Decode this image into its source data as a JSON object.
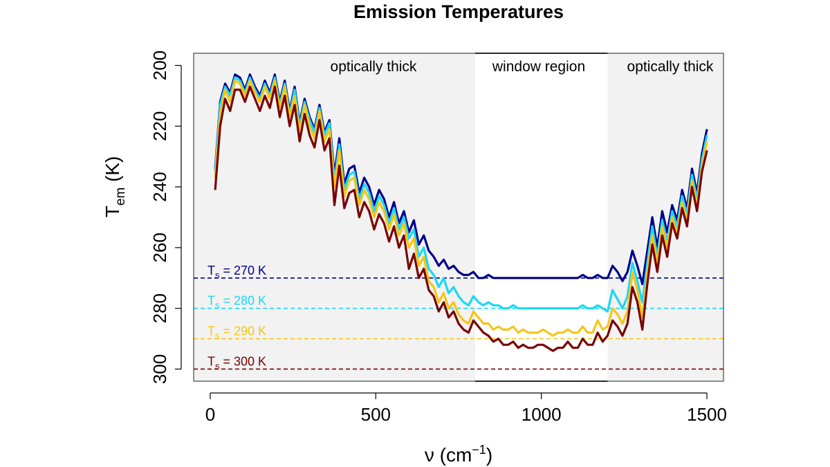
{
  "chart_data": {
    "type": "line",
    "title": "Emission Temperatures",
    "xlabel": {
      "base": "ν  (cm",
      "superscript": "−1",
      "suffix": ")"
    },
    "ylabel": {
      "base": "T",
      "subscript": "em",
      "suffix": "  (K)"
    },
    "xlim": [
      -50,
      1550
    ],
    "ylim": [
      304,
      196
    ],
    "y_reversed": true,
    "xticks": [
      "0",
      "500",
      "1000",
      "1500"
    ],
    "xtick_values": [
      0,
      500,
      1000,
      1500
    ],
    "yticks": [
      "200",
      "220",
      "240",
      "260",
      "280",
      "300"
    ],
    "ytick_values": [
      200,
      220,
      240,
      260,
      280,
      300
    ],
    "grid": false,
    "regions": [
      {
        "label": "optically thick",
        "x": [
          -50,
          800
        ],
        "shaded": true,
        "color": "#f2f2f2"
      },
      {
        "label": "window region",
        "x": [
          800,
          1200
        ],
        "shaded": false,
        "color": "#ffffff"
      },
      {
        "label": "optically thick",
        "x": [
          1200,
          1550
        ],
        "shaded": true,
        "color": "#f2f2f2"
      }
    ],
    "reference_lines": [
      {
        "y": 270,
        "color": "#00008b",
        "label_base": "T",
        "label_sub": "s",
        "label_rest": " = 270 K"
      },
      {
        "y": 280,
        "color": "#1ad8f5",
        "label_base": "T",
        "label_sub": "s",
        "label_rest": " = 280 K"
      },
      {
        "y": 290,
        "color": "#f5c518",
        "label_base": "T",
        "label_sub": "s",
        "label_rest": " = 290 K"
      },
      {
        "y": 300,
        "color": "#7a0000",
        "label_base": "T",
        "label_sub": "s",
        "label_rest": " = 300 K"
      }
    ],
    "x": [
      15,
      30,
      45,
      60,
      75,
      90,
      105,
      120,
      135,
      150,
      165,
      180,
      195,
      210,
      225,
      240,
      255,
      270,
      285,
      300,
      315,
      330,
      345,
      360,
      375,
      390,
      405,
      420,
      435,
      450,
      465,
      480,
      495,
      510,
      525,
      540,
      555,
      570,
      585,
      600,
      615,
      630,
      645,
      660,
      675,
      690,
      705,
      720,
      735,
      750,
      765,
      780,
      795,
      810,
      825,
      840,
      855,
      870,
      885,
      900,
      915,
      930,
      945,
      960,
      975,
      990,
      1005,
      1020,
      1035,
      1050,
      1065,
      1080,
      1095,
      1110,
      1125,
      1140,
      1155,
      1170,
      1185,
      1200,
      1215,
      1230,
      1245,
      1260,
      1275,
      1290,
      1305,
      1320,
      1335,
      1350,
      1365,
      1380,
      1395,
      1410,
      1425,
      1440,
      1455,
      1470,
      1485,
      1500
    ],
    "series": [
      {
        "name": "",
        "color": "#00008b",
        "ts": 270,
        "values": [
          234,
          212,
          206,
          209,
          203,
          204,
          208,
          203,
          207,
          210,
          205,
          209,
          203,
          212,
          205,
          215,
          207,
          219,
          211,
          217,
          221,
          213,
          222,
          218,
          236,
          224,
          239,
          234,
          233,
          242,
          237,
          240,
          246,
          241,
          244,
          250,
          245,
          252,
          248,
          255,
          251,
          259,
          256,
          261,
          263,
          266,
          264,
          267,
          266,
          268,
          269,
          269,
          268,
          270,
          270,
          269,
          270,
          270,
          270,
          270,
          270,
          270,
          270,
          270,
          270,
          270,
          270,
          270,
          270,
          270,
          270,
          270,
          270,
          270,
          269,
          270,
          270,
          269,
          270,
          270,
          266,
          268,
          271,
          268,
          261,
          266,
          272,
          261,
          250,
          260,
          248,
          255,
          246,
          251,
          241,
          247,
          234,
          242,
          229,
          221
        ]
      },
      {
        "name": "",
        "color": "#1ad8f5",
        "ts": 280,
        "values": [
          235,
          213,
          207,
          210,
          204,
          205,
          209,
          204,
          208,
          211,
          206,
          210,
          204,
          213,
          206,
          216,
          208,
          220,
          212,
          218,
          222,
          214,
          223,
          219,
          238,
          226,
          241,
          236,
          235,
          244,
          239,
          242,
          248,
          243,
          246,
          252,
          247,
          254,
          250,
          257,
          254,
          263,
          260,
          267,
          269,
          273,
          270,
          275,
          273,
          276,
          278,
          279,
          276,
          278,
          279,
          278,
          279,
          279,
          280,
          280,
          279,
          280,
          280,
          280,
          280,
          280,
          280,
          280,
          280,
          280,
          280,
          280,
          280,
          280,
          279,
          280,
          280,
          279,
          280,
          281,
          274,
          277,
          280,
          276,
          265,
          271,
          278,
          265,
          253,
          263,
          251,
          258,
          248,
          253,
          243,
          249,
          236,
          244,
          231,
          223
        ]
      },
      {
        "name": "",
        "color": "#f5c518",
        "ts": 290,
        "values": [
          237,
          216,
          208,
          212,
          205,
          206,
          210,
          205,
          209,
          212,
          207,
          211,
          205,
          214,
          207,
          217,
          210,
          222,
          213,
          220,
          224,
          215,
          225,
          221,
          240,
          228,
          243,
          238,
          237,
          246,
          241,
          244,
          250,
          245,
          248,
          254,
          249,
          256,
          252,
          260,
          257,
          266,
          263,
          271,
          273,
          278,
          275,
          280,
          278,
          282,
          284,
          285,
          281,
          283,
          285,
          285,
          287,
          286,
          287,
          287,
          286,
          288,
          287,
          288,
          288,
          288,
          287,
          288,
          289,
          288,
          288,
          287,
          288,
          288,
          286,
          288,
          288,
          284,
          287,
          286,
          280,
          282,
          285,
          281,
          268,
          274,
          283,
          268,
          256,
          265,
          253,
          260,
          250,
          255,
          245,
          251,
          238,
          246,
          233,
          225
        ]
      },
      {
        "name": "",
        "color": "#7a0000",
        "ts": 300,
        "values": [
          241,
          220,
          211,
          215,
          208,
          208,
          212,
          207,
          211,
          215,
          210,
          214,
          207,
          217,
          210,
          220,
          213,
          225,
          216,
          223,
          227,
          218,
          228,
          224,
          246,
          233,
          247,
          242,
          241,
          250,
          245,
          248,
          254,
          249,
          252,
          258,
          253,
          260,
          256,
          267,
          262,
          270,
          267,
          274,
          276,
          281,
          278,
          283,
          281,
          285,
          287,
          288,
          284,
          286,
          288,
          289,
          291,
          290,
          292,
          292,
          291,
          293,
          292,
          293,
          293,
          292,
          292,
          293,
          294,
          293,
          293,
          291,
          293,
          293,
          290,
          292,
          292,
          288,
          291,
          289,
          284,
          286,
          289,
          285,
          273,
          278,
          287,
          272,
          259,
          268,
          256,
          263,
          252,
          257,
          247,
          253,
          240,
          248,
          235,
          228
        ]
      }
    ]
  }
}
